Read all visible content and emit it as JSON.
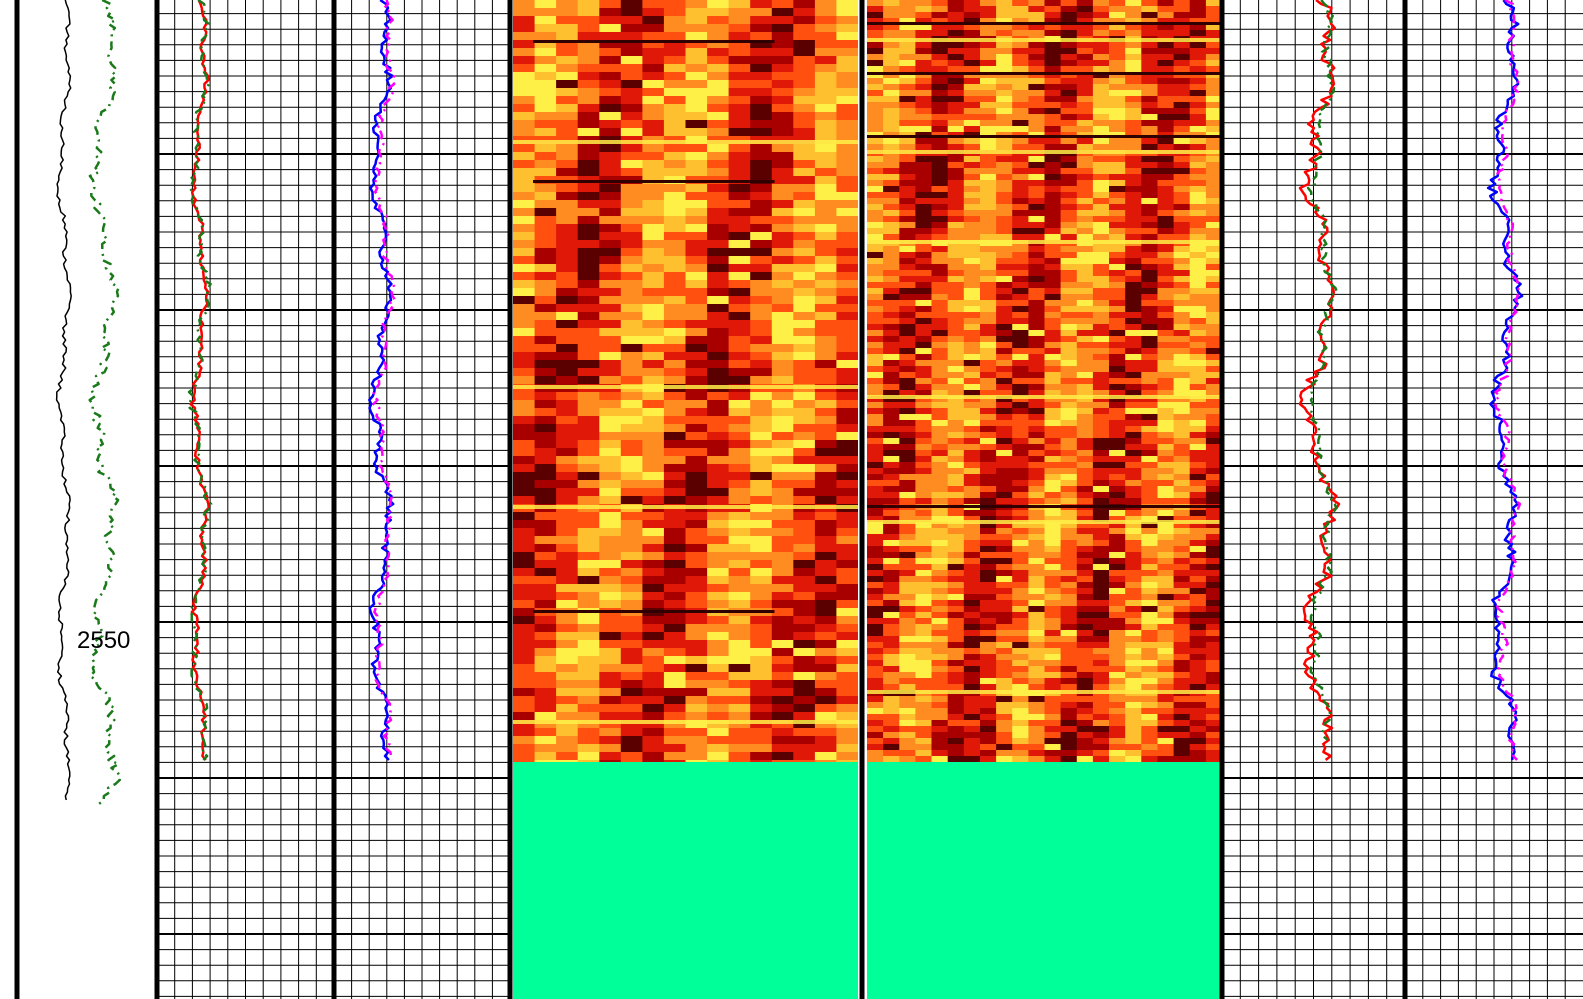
{
  "chart_data": {
    "type": "well-log",
    "depth_label": "2550",
    "grid": true,
    "image_fill_color": "#00ff99",
    "heatmap_colors": [
      "#5a0000",
      "#a80000",
      "#e01808",
      "#ff5010",
      "#ff8c20",
      "#ffc030",
      "#fff048"
    ],
    "tracks": [
      {
        "id": "track-1",
        "curves": [
          {
            "name": "",
            "color": "#000000",
            "style": "solid"
          },
          {
            "name": "",
            "color": "#1a7a1a",
            "style": "dashdot"
          }
        ]
      },
      {
        "id": "track-2",
        "curves": [
          {
            "name": "",
            "color": "#ff0000",
            "style": "solid"
          },
          {
            "name": "",
            "color": "#1a7a1a",
            "style": "dashdot"
          }
        ]
      },
      {
        "id": "track-3",
        "curves": [
          {
            "name": "",
            "color": "#0000ff",
            "style": "solid"
          },
          {
            "name": "",
            "color": "#ff00ff",
            "style": "dashdot"
          }
        ]
      },
      {
        "id": "image-track-1",
        "type": "heatmap"
      },
      {
        "id": "image-track-2",
        "type": "heatmap"
      },
      {
        "id": "track-6",
        "curves": [
          {
            "name": "",
            "color": "#ff0000",
            "style": "solid"
          },
          {
            "name": "",
            "color": "#1a7a1a",
            "style": "dashdot"
          }
        ]
      },
      {
        "id": "track-7",
        "curves": [
          {
            "name": "",
            "color": "#0000ff",
            "style": "solid"
          },
          {
            "name": "",
            "color": "#ff00ff",
            "style": "dashdot"
          }
        ]
      }
    ]
  }
}
